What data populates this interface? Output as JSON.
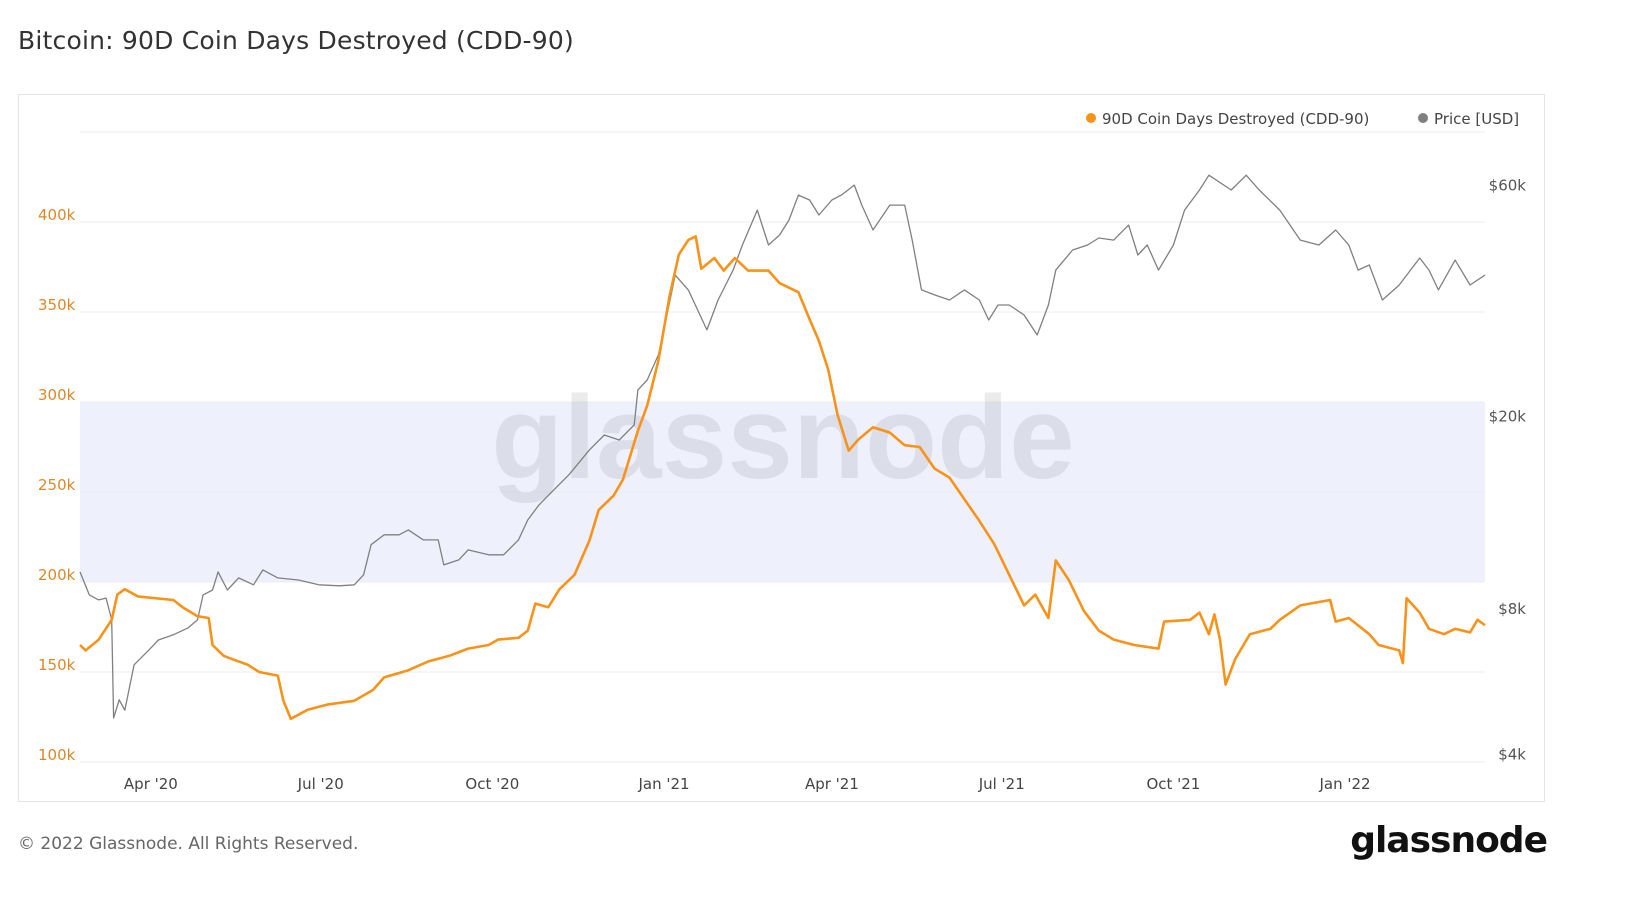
{
  "title": "Bitcoin: 90D Coin Days Destroyed (CDD-90)",
  "footer": "© 2022 Glassnode. All Rights Reserved.",
  "logo_text": "glassnode",
  "watermark": "glassnode",
  "chart_data": {
    "type": "line",
    "title": "Bitcoin: 90D Coin Days Destroyed (CDD-90)",
    "legend_placement": "top-right",
    "grid": true,
    "xlim": [
      "2020-02-23",
      "2022-03-17"
    ],
    "x_ticks": [
      {
        "date": "2020-04-01",
        "label": "Apr '20"
      },
      {
        "date": "2020-07-01",
        "label": "Jul '20"
      },
      {
        "date": "2020-10-01",
        "label": "Oct '20"
      },
      {
        "date": "2021-01-01",
        "label": "Jan '21"
      },
      {
        "date": "2021-04-01",
        "label": "Apr '21"
      },
      {
        "date": "2021-07-01",
        "label": "Jul '21"
      },
      {
        "date": "2021-10-01",
        "label": "Oct '21"
      },
      {
        "date": "2022-01-01",
        "label": "Jan '22"
      }
    ],
    "y_left": {
      "scale": "linear",
      "ylim": [
        100000,
        450000
      ],
      "ticks": [
        {
          "v": 100000,
          "label": "100k"
        },
        {
          "v": 150000,
          "label": "150k"
        },
        {
          "v": 200000,
          "label": "200k"
        },
        {
          "v": 250000,
          "label": "250k"
        },
        {
          "v": 300000,
          "label": "300k"
        },
        {
          "v": 350000,
          "label": "350k"
        },
        {
          "v": 400000,
          "label": "400k"
        }
      ],
      "color": "#d9892b"
    },
    "y_right": {
      "scale": "log",
      "ylim": [
        3860,
        77400
      ],
      "ticks": [
        {
          "v": 4000,
          "label": "$4k"
        },
        {
          "v": 8000,
          "label": "$8k"
        },
        {
          "v": 20000,
          "label": "$20k"
        },
        {
          "v": 60000,
          "label": "$60k"
        }
      ],
      "color": "#555555"
    },
    "shaded_band": {
      "from": 200000,
      "to": 300000,
      "axis": "left",
      "color": "#eef0fc"
    },
    "series": [
      {
        "name": "90D Coin Days Destroyed (CDD-90)",
        "axis": "left",
        "color": "#f7931a",
        "points": [
          [
            "2020-02-23",
            165000
          ],
          [
            "2020-02-26",
            162000
          ],
          [
            "2020-03-04",
            168000
          ],
          [
            "2020-03-11",
            179000
          ],
          [
            "2020-03-14",
            193000
          ],
          [
            "2020-03-18",
            196000
          ],
          [
            "2020-03-25",
            192000
          ],
          [
            "2020-04-13",
            190000
          ],
          [
            "2020-04-18",
            186000
          ],
          [
            "2020-04-26",
            181000
          ],
          [
            "2020-05-02",
            180000
          ],
          [
            "2020-05-04",
            165000
          ],
          [
            "2020-05-10",
            159000
          ],
          [
            "2020-05-15",
            157000
          ],
          [
            "2020-05-23",
            154000
          ],
          [
            "2020-05-29",
            150000
          ],
          [
            "2020-06-08",
            148000
          ],
          [
            "2020-06-11",
            134000
          ],
          [
            "2020-06-15",
            124000
          ],
          [
            "2020-06-24",
            129000
          ],
          [
            "2020-07-05",
            132000
          ],
          [
            "2020-07-19",
            134000
          ],
          [
            "2020-07-29",
            140000
          ],
          [
            "2020-08-04",
            147000
          ],
          [
            "2020-08-17",
            151000
          ],
          [
            "2020-08-28",
            156000
          ],
          [
            "2020-09-08",
            159000
          ],
          [
            "2020-09-18",
            163000
          ],
          [
            "2020-09-29",
            165000
          ],
          [
            "2020-10-04",
            168000
          ],
          [
            "2020-10-15",
            169000
          ],
          [
            "2020-10-20",
            173000
          ],
          [
            "2020-10-24",
            188000
          ],
          [
            "2020-10-31",
            186000
          ],
          [
            "2020-11-06",
            196000
          ],
          [
            "2020-11-14",
            204000
          ],
          [
            "2020-11-22",
            223000
          ],
          [
            "2020-11-27",
            240000
          ],
          [
            "2020-12-05",
            248000
          ],
          [
            "2020-12-10",
            257000
          ],
          [
            "2020-12-18",
            284000
          ],
          [
            "2020-12-23",
            298000
          ],
          [
            "2020-12-29",
            323000
          ],
          [
            "2021-01-04",
            359000
          ],
          [
            "2021-01-09",
            382000
          ],
          [
            "2021-01-14",
            390000
          ],
          [
            "2021-01-18",
            392000
          ],
          [
            "2021-01-21",
            374000
          ],
          [
            "2021-01-28",
            380000
          ],
          [
            "2021-02-02",
            373000
          ],
          [
            "2021-02-08",
            380000
          ],
          [
            "2021-02-15",
            373000
          ],
          [
            "2021-02-26",
            373000
          ],
          [
            "2021-03-04",
            366000
          ],
          [
            "2021-03-14",
            361000
          ],
          [
            "2021-03-20",
            346000
          ],
          [
            "2021-03-25",
            334000
          ],
          [
            "2021-03-30",
            318000
          ],
          [
            "2021-04-04",
            293000
          ],
          [
            "2021-04-10",
            273000
          ],
          [
            "2021-04-15",
            279000
          ],
          [
            "2021-04-23",
            286000
          ],
          [
            "2021-05-02",
            283000
          ],
          [
            "2021-05-10",
            276000
          ],
          [
            "2021-05-18",
            275000
          ],
          [
            "2021-05-26",
            263000
          ],
          [
            "2021-06-03",
            258000
          ],
          [
            "2021-06-11",
            246000
          ],
          [
            "2021-06-19",
            234000
          ],
          [
            "2021-06-27",
            221000
          ],
          [
            "2021-07-05",
            204000
          ],
          [
            "2021-07-13",
            187000
          ],
          [
            "2021-07-19",
            193000
          ],
          [
            "2021-07-26",
            180000
          ],
          [
            "2021-07-30",
            212000
          ],
          [
            "2021-08-06",
            201000
          ],
          [
            "2021-08-14",
            184000
          ],
          [
            "2021-08-22",
            173000
          ],
          [
            "2021-08-30",
            168000
          ],
          [
            "2021-09-10",
            165000
          ],
          [
            "2021-09-23",
            163000
          ],
          [
            "2021-09-26",
            178000
          ],
          [
            "2021-10-10",
            179000
          ],
          [
            "2021-10-15",
            183000
          ],
          [
            "2021-10-20",
            171000
          ],
          [
            "2021-10-23",
            182000
          ],
          [
            "2021-10-26",
            168000
          ],
          [
            "2021-10-29",
            143000
          ],
          [
            "2021-11-03",
            157000
          ],
          [
            "2021-11-11",
            171000
          ],
          [
            "2021-11-22",
            174000
          ],
          [
            "2021-11-27",
            179000
          ],
          [
            "2021-12-08",
            187000
          ],
          [
            "2021-12-24",
            190000
          ],
          [
            "2021-12-27",
            178000
          ],
          [
            "2022-01-03",
            180000
          ],
          [
            "2022-01-14",
            171000
          ],
          [
            "2022-01-19",
            165000
          ],
          [
            "2022-01-30",
            162000
          ],
          [
            "2022-02-01",
            155000
          ],
          [
            "2022-02-03",
            191000
          ],
          [
            "2022-02-10",
            183000
          ],
          [
            "2022-02-15",
            174000
          ],
          [
            "2022-02-23",
            171000
          ],
          [
            "2022-03-01",
            174000
          ],
          [
            "2022-03-09",
            172000
          ],
          [
            "2022-03-13",
            179000
          ],
          [
            "2022-03-17",
            176000
          ]
        ]
      },
      {
        "name": "Price [USD]",
        "axis": "right",
        "color": "#808080",
        "points": [
          [
            "2020-02-23",
            9540
          ],
          [
            "2020-02-28",
            8550
          ],
          [
            "2020-03-04",
            8350
          ],
          [
            "2020-03-08",
            8420
          ],
          [
            "2020-03-11",
            7590
          ],
          [
            "2020-03-12",
            4760
          ],
          [
            "2020-03-15",
            5190
          ],
          [
            "2020-03-18",
            4940
          ],
          [
            "2020-03-23",
            6130
          ],
          [
            "2020-03-31",
            6580
          ],
          [
            "2020-04-05",
            6900
          ],
          [
            "2020-04-13",
            7070
          ],
          [
            "2020-04-21",
            7310
          ],
          [
            "2020-04-26",
            7590
          ],
          [
            "2020-04-29",
            8550
          ],
          [
            "2020-05-04",
            8750
          ],
          [
            "2020-05-07",
            9540
          ],
          [
            "2020-05-12",
            8750
          ],
          [
            "2020-05-18",
            9270
          ],
          [
            "2020-05-26",
            8970
          ],
          [
            "2020-05-31",
            9630
          ],
          [
            "2020-06-08",
            9270
          ],
          [
            "2020-06-19",
            9180
          ],
          [
            "2020-06-30",
            8970
          ],
          [
            "2020-07-11",
            8930
          ],
          [
            "2020-07-19",
            8970
          ],
          [
            "2020-07-24",
            9410
          ],
          [
            "2020-07-28",
            10860
          ],
          [
            "2020-08-04",
            11380
          ],
          [
            "2020-08-12",
            11380
          ],
          [
            "2020-08-17",
            11650
          ],
          [
            "2020-08-25",
            11110
          ],
          [
            "2020-09-02",
            11110
          ],
          [
            "2020-09-05",
            9860
          ],
          [
            "2020-09-13",
            10100
          ],
          [
            "2020-09-18",
            10590
          ],
          [
            "2020-09-29",
            10350
          ],
          [
            "2020-10-07",
            10350
          ],
          [
            "2020-10-15",
            11110
          ],
          [
            "2020-10-20",
            12220
          ],
          [
            "2020-10-26",
            13120
          ],
          [
            "2020-11-03",
            14100
          ],
          [
            "2020-11-11",
            15140
          ],
          [
            "2020-11-22",
            17050
          ],
          [
            "2020-11-30",
            18300
          ],
          [
            "2020-12-08",
            17870
          ],
          [
            "2020-12-16",
            19200
          ],
          [
            "2020-12-18",
            22680
          ],
          [
            "2020-12-23",
            23780
          ],
          [
            "2020-12-29",
            26790
          ],
          [
            "2021-01-02",
            31640
          ],
          [
            "2021-01-07",
            39180
          ],
          [
            "2021-01-14",
            36500
          ],
          [
            "2021-01-19",
            33190
          ],
          [
            "2021-01-24",
            30180
          ],
          [
            "2021-01-30",
            34790
          ],
          [
            "2021-02-07",
            40120
          ],
          [
            "2021-02-12",
            45200
          ],
          [
            "2021-02-20",
            53380
          ],
          [
            "2021-02-26",
            45200
          ],
          [
            "2021-03-04",
            47430
          ],
          [
            "2021-03-09",
            50910
          ],
          [
            "2021-03-14",
            57330
          ],
          [
            "2021-03-20",
            55990
          ],
          [
            "2021-03-25",
            52130
          ],
          [
            "2021-04-01",
            55990
          ],
          [
            "2021-04-06",
            57330
          ],
          [
            "2021-04-13",
            60130
          ],
          [
            "2021-04-17",
            54670
          ],
          [
            "2021-04-23",
            48540
          ],
          [
            "2021-05-02",
            54670
          ],
          [
            "2021-05-10",
            54670
          ],
          [
            "2021-05-14",
            46280
          ],
          [
            "2021-05-19",
            36500
          ],
          [
            "2021-05-26",
            35650
          ],
          [
            "2021-06-03",
            34790
          ],
          [
            "2021-06-11",
            36500
          ],
          [
            "2021-06-19",
            34790
          ],
          [
            "2021-06-24",
            31640
          ],
          [
            "2021-06-29",
            33970
          ],
          [
            "2021-07-05",
            33970
          ],
          [
            "2021-07-13",
            32390
          ],
          [
            "2021-07-20",
            29460
          ],
          [
            "2021-07-26",
            33970
          ],
          [
            "2021-07-30",
            40120
          ],
          [
            "2021-08-08",
            44140
          ],
          [
            "2021-08-16",
            45200
          ],
          [
            "2021-08-22",
            46740
          ],
          [
            "2021-08-30",
            46280
          ],
          [
            "2021-09-07",
            49690
          ],
          [
            "2021-09-12",
            43100
          ],
          [
            "2021-09-17",
            45200
          ],
          [
            "2021-09-23",
            40120
          ],
          [
            "2021-10-01",
            45200
          ],
          [
            "2021-10-07",
            53380
          ],
          [
            "2021-10-15",
            58730
          ],
          [
            "2021-10-20",
            63030
          ],
          [
            "2021-11-01",
            58730
          ],
          [
            "2021-11-09",
            63030
          ],
          [
            "2021-11-16",
            58730
          ],
          [
            "2021-11-27",
            53380
          ],
          [
            "2021-12-08",
            46280
          ],
          [
            "2021-12-18",
            45200
          ],
          [
            "2021-12-27",
            48540
          ],
          [
            "2022-01-03",
            45200
          ],
          [
            "2022-01-08",
            40120
          ],
          [
            "2022-01-14",
            41100
          ],
          [
            "2022-01-21",
            34790
          ],
          [
            "2022-01-30",
            37360
          ],
          [
            "2022-02-10",
            42490
          ],
          [
            "2022-02-15",
            40120
          ],
          [
            "2022-02-20",
            36500
          ],
          [
            "2022-03-01",
            42060
          ],
          [
            "2022-03-09",
            37360
          ],
          [
            "2022-03-17",
            39180
          ]
        ]
      }
    ]
  }
}
